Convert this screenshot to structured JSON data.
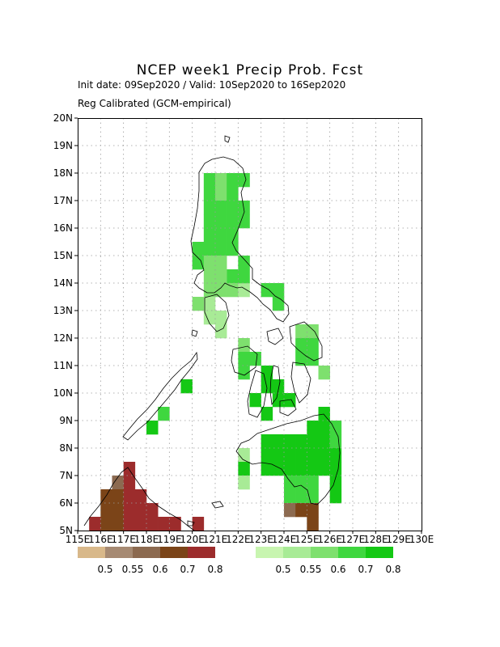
{
  "header": {
    "title": "NCEP week1 Precip Prob. Fcst",
    "line1": "Init date: 09Sep2020 / Valid: 10Sep2020 to 16Sep2020",
    "line2": "Reg Calibrated (GCM-empirical)"
  },
  "map": {
    "lon_range": [
      115,
      130
    ],
    "lat_range": [
      5,
      20
    ],
    "grid_step_deg": 1,
    "cell_deg": 0.5,
    "lat_labels": [
      "20N",
      "19N",
      "18N",
      "17N",
      "16N",
      "15N",
      "14N",
      "13N",
      "12N",
      "11N",
      "10N",
      "9N",
      "8N",
      "7N",
      "6N",
      "5N"
    ],
    "lon_labels": [
      "115E",
      "116E",
      "117E",
      "118E",
      "119E",
      "120E",
      "121E",
      "122E",
      "123E",
      "124E",
      "125E",
      "126E",
      "127E",
      "128E",
      "129E",
      "130E"
    ]
  },
  "legends": {
    "dry": {
      "labels": [
        "0.5",
        "0.55",
        "0.6",
        "0.7",
        "0.8"
      ],
      "colors": [
        "#d8b88a",
        "#a68a73",
        "#8c6a50",
        "#7b4418",
        "#9c2c2c"
      ]
    },
    "wet": {
      "labels": [
        "0.5",
        "0.55",
        "0.6",
        "0.7",
        "0.8"
      ],
      "colors": [
        "#c8f5b0",
        "#a8eb96",
        "#7ee06e",
        "#3fd73f",
        "#14c814"
      ]
    }
  },
  "forecast_cells": [
    {
      "lon": 120.5,
      "lat": 17.5,
      "cat": "w3"
    },
    {
      "lon": 121.0,
      "lat": 17.5,
      "cat": "w2"
    },
    {
      "lon": 121.5,
      "lat": 17.5,
      "cat": "w3"
    },
    {
      "lon": 122.0,
      "lat": 17.5,
      "cat": "w3"
    },
    {
      "lon": 120.5,
      "lat": 17.0,
      "cat": "w3"
    },
    {
      "lon": 121.0,
      "lat": 17.0,
      "cat": "w2"
    },
    {
      "lon": 121.5,
      "lat": 17.0,
      "cat": "w3"
    },
    {
      "lon": 120.5,
      "lat": 16.5,
      "cat": "w3"
    },
    {
      "lon": 121.0,
      "lat": 16.5,
      "cat": "w3"
    },
    {
      "lon": 121.5,
      "lat": 16.5,
      "cat": "w3"
    },
    {
      "lon": 122.0,
      "lat": 16.5,
      "cat": "w3"
    },
    {
      "lon": 120.5,
      "lat": 16.0,
      "cat": "w3"
    },
    {
      "lon": 121.0,
      "lat": 16.0,
      "cat": "w3"
    },
    {
      "lon": 121.5,
      "lat": 16.0,
      "cat": "w3"
    },
    {
      "lon": 122.0,
      "lat": 16.0,
      "cat": "w3"
    },
    {
      "lon": 120.5,
      "lat": 15.5,
      "cat": "w3"
    },
    {
      "lon": 121.0,
      "lat": 15.5,
      "cat": "w3"
    },
    {
      "lon": 121.5,
      "lat": 15.5,
      "cat": "w3"
    },
    {
      "lon": 120.0,
      "lat": 15.0,
      "cat": "w3"
    },
    {
      "lon": 120.5,
      "lat": 15.0,
      "cat": "w3"
    },
    {
      "lon": 121.0,
      "lat": 15.0,
      "cat": "w3"
    },
    {
      "lon": 121.5,
      "lat": 15.0,
      "cat": "w3"
    },
    {
      "lon": 120.0,
      "lat": 14.5,
      "cat": "w3"
    },
    {
      "lon": 120.5,
      "lat": 14.5,
      "cat": "w2"
    },
    {
      "lon": 121.0,
      "lat": 14.5,
      "cat": "w2"
    },
    {
      "lon": 121.5,
      "lat": 14.0,
      "cat": "w3"
    },
    {
      "lon": 120.5,
      "lat": 14.0,
      "cat": "w2"
    },
    {
      "lon": 121.0,
      "lat": 14.0,
      "cat": "w2"
    },
    {
      "lon": 120.5,
      "lat": 13.5,
      "cat": "w2"
    },
    {
      "lon": 121.0,
      "lat": 13.5,
      "cat": "w2"
    },
    {
      "lon": 121.5,
      "lat": 13.5,
      "cat": "w2"
    },
    {
      "lon": 122.0,
      "lat": 13.5,
      "cat": "w1"
    },
    {
      "lon": 120.0,
      "lat": 13.0,
      "cat": "w2"
    },
    {
      "lon": 120.5,
      "lat": 13.0,
      "cat": "w1"
    },
    {
      "lon": 120.5,
      "lat": 12.5,
      "cat": "w1"
    },
    {
      "lon": 121.0,
      "lat": 12.5,
      "cat": "w1"
    },
    {
      "lon": 121.0,
      "lat": 12.0,
      "cat": "w1"
    },
    {
      "lon": 123.0,
      "lat": 13.5,
      "cat": "w3"
    },
    {
      "lon": 123.5,
      "lat": 13.5,
      "cat": "w3"
    },
    {
      "lon": 123.5,
      "lat": 13.0,
      "cat": "w3"
    },
    {
      "lon": 122.0,
      "lat": 14.0,
      "cat": "w3"
    },
    {
      "lon": 122.0,
      "lat": 14.5,
      "cat": "w3"
    },
    {
      "lon": 124.5,
      "lat": 12.0,
      "cat": "w2"
    },
    {
      "lon": 125.0,
      "lat": 12.0,
      "cat": "w2"
    },
    {
      "lon": 124.5,
      "lat": 11.5,
      "cat": "w3"
    },
    {
      "lon": 125.0,
      "lat": 11.5,
      "cat": "w3"
    },
    {
      "lon": 124.5,
      "lat": 11.0,
      "cat": "w3"
    },
    {
      "lon": 125.0,
      "lat": 11.0,
      "cat": "w3"
    },
    {
      "lon": 125.5,
      "lat": 10.5,
      "cat": "w2"
    },
    {
      "lon": 122.0,
      "lat": 11.5,
      "cat": "w2"
    },
    {
      "lon": 122.0,
      "lat": 11.0,
      "cat": "w3"
    },
    {
      "lon": 122.5,
      "lat": 11.0,
      "cat": "w3"
    },
    {
      "lon": 122.0,
      "lat": 10.5,
      "cat": "w3"
    },
    {
      "lon": 123.0,
      "lat": 10.5,
      "cat": "w4"
    },
    {
      "lon": 123.0,
      "lat": 10.0,
      "cat": "w4"
    },
    {
      "lon": 123.5,
      "lat": 10.0,
      "cat": "w4"
    },
    {
      "lon": 122.5,
      "lat": 9.5,
      "cat": "w4"
    },
    {
      "lon": 123.5,
      "lat": 9.5,
      "cat": "w4"
    },
    {
      "lon": 124.0,
      "lat": 9.5,
      "cat": "w4"
    },
    {
      "lon": 123.0,
      "lat": 9.0,
      "cat": "w4"
    },
    {
      "lon": 119.5,
      "lat": 10.0,
      "cat": "w4"
    },
    {
      "lon": 118.5,
      "lat": 9.0,
      "cat": "w3"
    },
    {
      "lon": 118.0,
      "lat": 8.5,
      "cat": "w4"
    },
    {
      "lon": 125.5,
      "lat": 9.0,
      "cat": "w4"
    },
    {
      "lon": 125.0,
      "lat": 8.5,
      "cat": "w4"
    },
    {
      "lon": 125.5,
      "lat": 8.5,
      "cat": "w4"
    },
    {
      "lon": 126.0,
      "lat": 8.5,
      "cat": "w3"
    },
    {
      "lon": 123.0,
      "lat": 8.0,
      "cat": "w4"
    },
    {
      "lon": 123.5,
      "lat": 8.0,
      "cat": "w4"
    },
    {
      "lon": 124.0,
      "lat": 8.0,
      "cat": "w4"
    },
    {
      "lon": 124.5,
      "lat": 8.0,
      "cat": "w4"
    },
    {
      "lon": 125.0,
      "lat": 8.0,
      "cat": "w4"
    },
    {
      "lon": 125.5,
      "lat": 8.0,
      "cat": "w4"
    },
    {
      "lon": 126.0,
      "lat": 8.0,
      "cat": "w3"
    },
    {
      "lon": 122.0,
      "lat": 7.5,
      "cat": "w1"
    },
    {
      "lon": 123.0,
      "lat": 7.5,
      "cat": "w4"
    },
    {
      "lon": 123.5,
      "lat": 7.5,
      "cat": "w4"
    },
    {
      "lon": 124.0,
      "lat": 7.5,
      "cat": "w4"
    },
    {
      "lon": 124.5,
      "lat": 7.5,
      "cat": "w4"
    },
    {
      "lon": 125.0,
      "lat": 7.5,
      "cat": "w4"
    },
    {
      "lon": 125.5,
      "lat": 7.5,
      "cat": "w4"
    },
    {
      "lon": 126.0,
      "lat": 7.5,
      "cat": "w4"
    },
    {
      "lon": 122.0,
      "lat": 7.0,
      "cat": "w4"
    },
    {
      "lon": 123.0,
      "lat": 7.0,
      "cat": "w4"
    },
    {
      "lon": 123.5,
      "lat": 7.0,
      "cat": "w4"
    },
    {
      "lon": 124.0,
      "lat": 7.0,
      "cat": "w4"
    },
    {
      "lon": 124.5,
      "lat": 7.0,
      "cat": "w4"
    },
    {
      "lon": 125.0,
      "lat": 7.0,
      "cat": "w4"
    },
    {
      "lon": 125.5,
      "lat": 7.0,
      "cat": "w4"
    },
    {
      "lon": 126.0,
      "lat": 7.0,
      "cat": "w4"
    },
    {
      "lon": 122.0,
      "lat": 6.5,
      "cat": "w1"
    },
    {
      "lon": 124.0,
      "lat": 6.5,
      "cat": "w3"
    },
    {
      "lon": 124.5,
      "lat": 6.5,
      "cat": "w3"
    },
    {
      "lon": 125.0,
      "lat": 6.5,
      "cat": "w3"
    },
    {
      "lon": 126.0,
      "lat": 6.5,
      "cat": "w4"
    },
    {
      "lon": 124.0,
      "lat": 6.0,
      "cat": "w3"
    },
    {
      "lon": 124.5,
      "lat": 6.0,
      "cat": "w3"
    },
    {
      "lon": 125.0,
      "lat": 6.0,
      "cat": "w3"
    },
    {
      "lon": 126.0,
      "lat": 6.0,
      "cat": "w4"
    },
    {
      "lon": 124.0,
      "lat": 5.5,
      "cat": "d2"
    },
    {
      "lon": 124.5,
      "lat": 5.5,
      "cat": "d3"
    },
    {
      "lon": 125.0,
      "lat": 5.5,
      "cat": "d3"
    },
    {
      "lon": 125.0,
      "lat": 5.0,
      "cat": "d3"
    },
    {
      "lon": 117.0,
      "lat": 7.0,
      "cat": "d4"
    },
    {
      "lon": 116.5,
      "lat": 6.5,
      "cat": "d2"
    },
    {
      "lon": 117.0,
      "lat": 6.5,
      "cat": "d4"
    },
    {
      "lon": 116.0,
      "lat": 6.0,
      "cat": "d3"
    },
    {
      "lon": 116.5,
      "lat": 6.0,
      "cat": "d3"
    },
    {
      "lon": 117.0,
      "lat": 6.0,
      "cat": "d4"
    },
    {
      "lon": 117.5,
      "lat": 6.0,
      "cat": "d4"
    },
    {
      "lon": 116.0,
      "lat": 5.5,
      "cat": "d3"
    },
    {
      "lon": 116.5,
      "lat": 5.5,
      "cat": "d3"
    },
    {
      "lon": 117.0,
      "lat": 5.5,
      "cat": "d4"
    },
    {
      "lon": 117.5,
      "lat": 5.5,
      "cat": "d4"
    },
    {
      "lon": 118.0,
      "lat": 5.5,
      "cat": "d4"
    },
    {
      "lon": 115.5,
      "lat": 5.0,
      "cat": "d4"
    },
    {
      "lon": 116.0,
      "lat": 5.0,
      "cat": "d3"
    },
    {
      "lon": 116.5,
      "lat": 5.0,
      "cat": "d3"
    },
    {
      "lon": 117.0,
      "lat": 5.0,
      "cat": "d4"
    },
    {
      "lon": 117.5,
      "lat": 5.0,
      "cat": "d4"
    },
    {
      "lon": 118.0,
      "lat": 5.0,
      "cat": "d4"
    },
    {
      "lon": 118.5,
      "lat": 5.0,
      "cat": "d4"
    },
    {
      "lon": 119.0,
      "lat": 5.0,
      "cat": "d4"
    },
    {
      "lon": 120.0,
      "lat": 5.0,
      "cat": "d4"
    }
  ]
}
